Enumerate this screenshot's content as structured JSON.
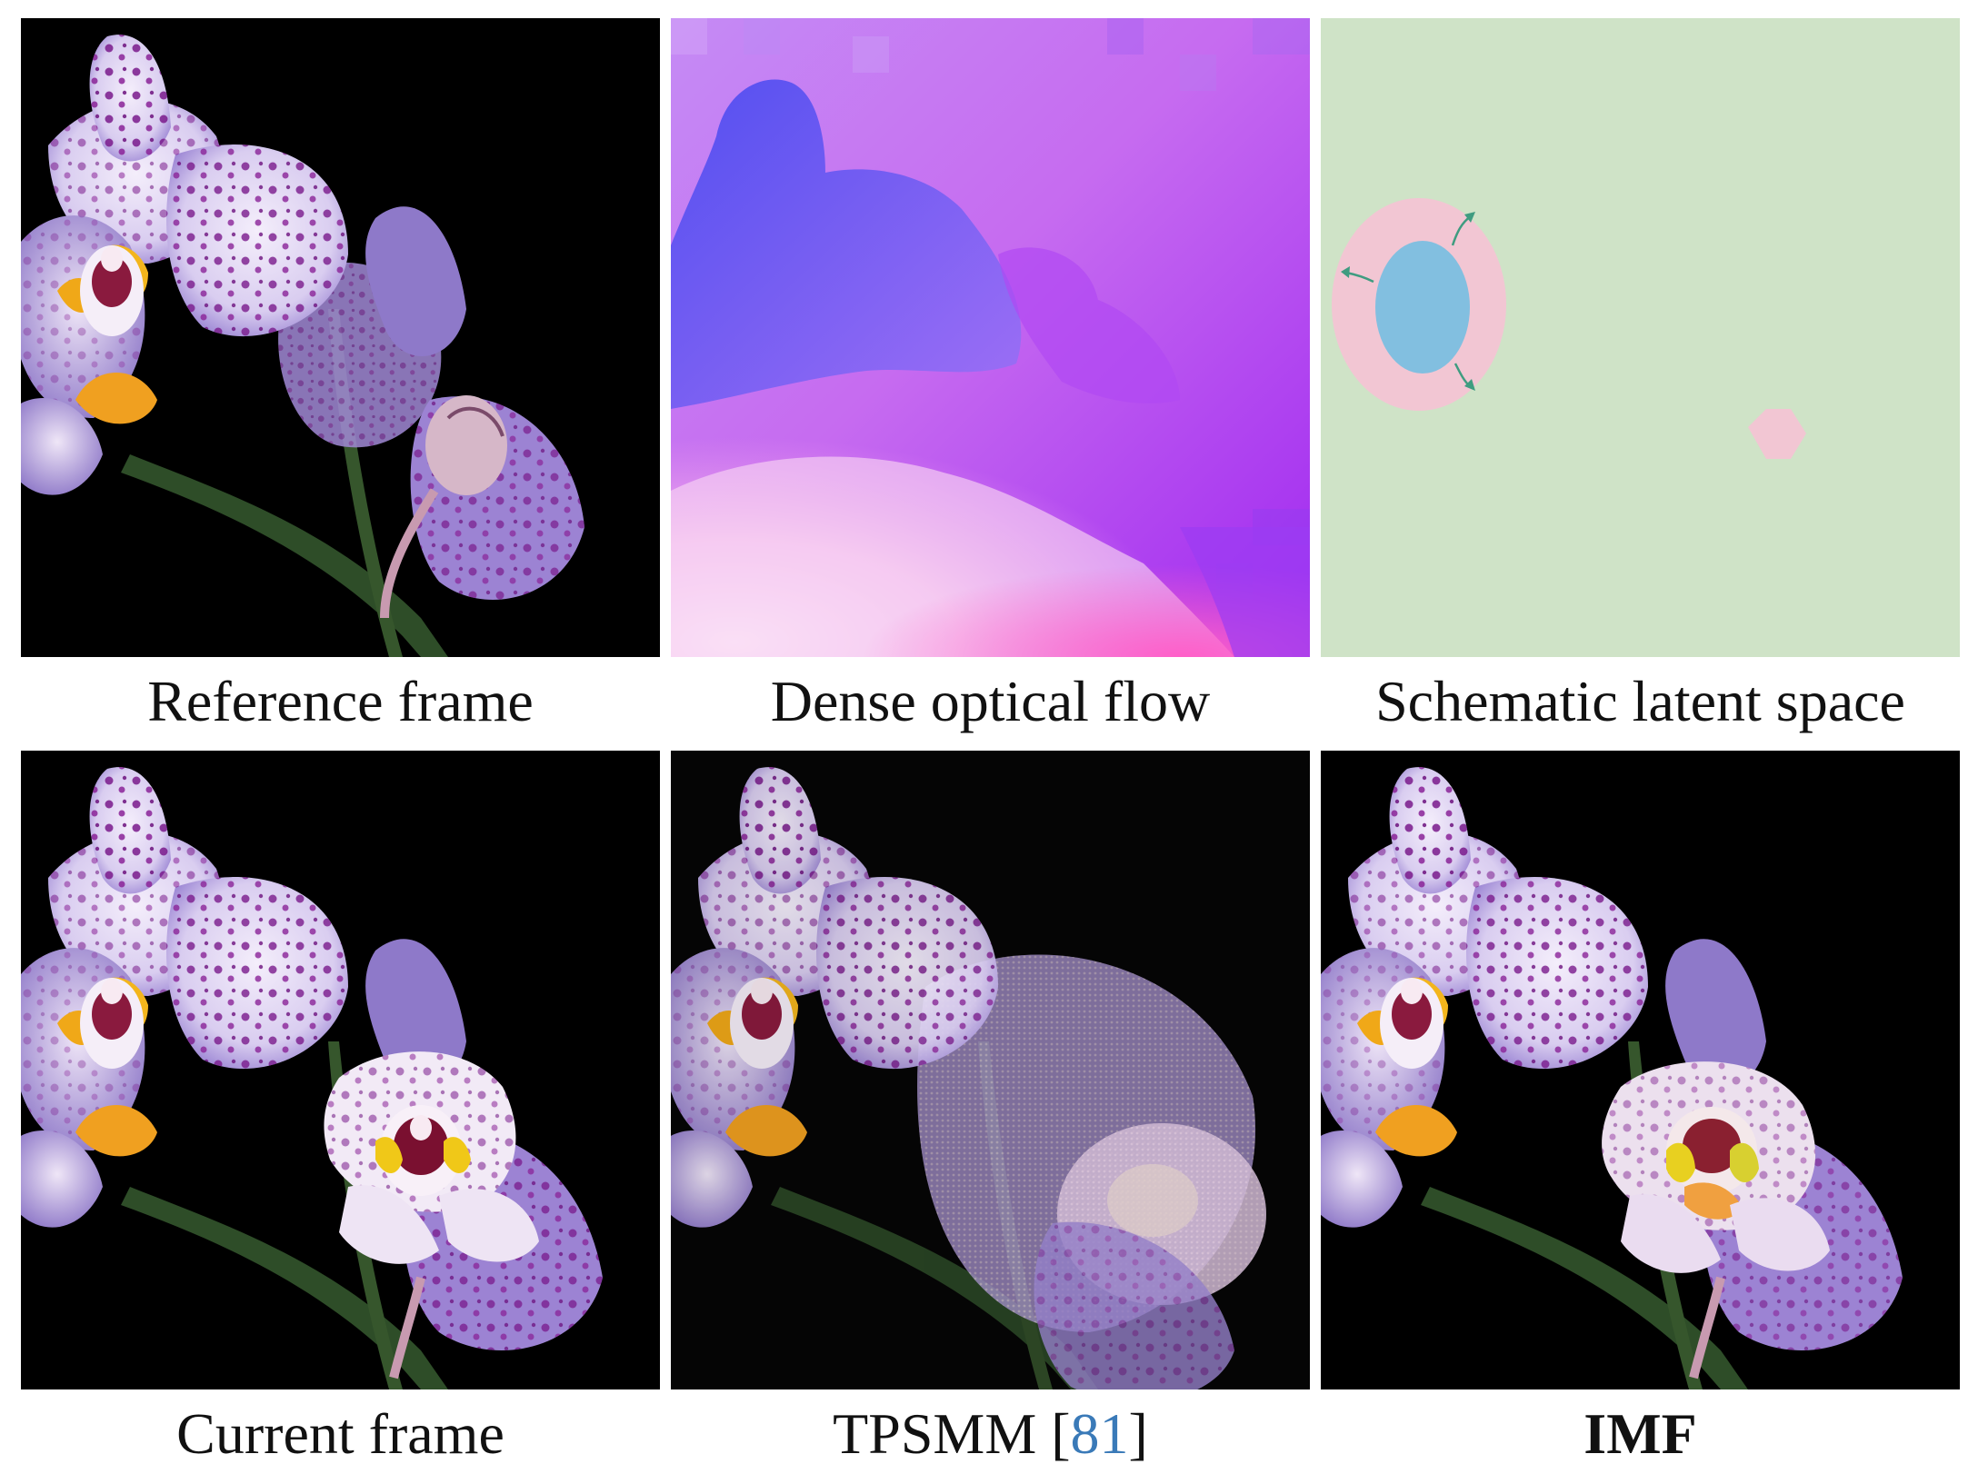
{
  "figure": {
    "panels": [
      {
        "caption": "Reference frame"
      },
      {
        "caption": "Dense optical flow"
      },
      {
        "caption": "Schematic latent space"
      },
      {
        "caption": "Current frame"
      },
      {
        "caption_text": "TPSMM [",
        "caption_cite": "81",
        "caption_close": "]"
      },
      {
        "caption": "IMF"
      }
    ]
  },
  "colors": {
    "flow_blue": "#5b55f0",
    "flow_magenta": "#d22cff",
    "flow_pink": "#ff5fd0",
    "latent_background": "#cfe3c7",
    "latent_ring": "#f2c6d3",
    "latent_core": "#82bfe0",
    "latent_arrow": "#3f9c80",
    "citation": "#3a7ab8"
  }
}
